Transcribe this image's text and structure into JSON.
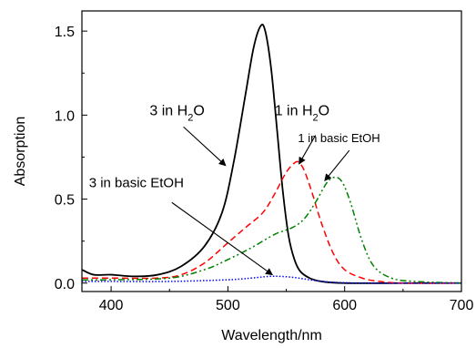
{
  "chart_data": {
    "type": "line",
    "xlabel": "Wavelength/nm",
    "ylabel": "Absorption",
    "xlim": [
      375,
      700
    ],
    "ylim": [
      -0.05,
      1.62
    ],
    "x_ticks": [
      400,
      500,
      600,
      700
    ],
    "x_tick_labels": [
      "400",
      "500",
      "600",
      "700"
    ],
    "y_ticks": [
      0.0,
      0.5,
      1.0,
      1.5
    ],
    "y_tick_labels": [
      "0.0",
      "0.5",
      "1.0",
      "1.5"
    ],
    "grid": false,
    "series": [
      {
        "name": "3 in H2O",
        "color": "#000000",
        "dash": "solid",
        "x": [
          375,
          385,
          400,
          420,
          440,
          460,
          480,
          495,
          505,
          515,
          522,
          528,
          532,
          537,
          542,
          547,
          552,
          557,
          562,
          570,
          580,
          600,
          650,
          700
        ],
        "y": [
          0.08,
          0.05,
          0.05,
          0.04,
          0.05,
          0.1,
          0.22,
          0.42,
          0.72,
          1.12,
          1.4,
          1.53,
          1.5,
          1.28,
          0.92,
          0.55,
          0.28,
          0.14,
          0.07,
          0.03,
          0.01,
          0.0,
          0.0,
          0.0
        ]
      },
      {
        "name": "1 in H2O",
        "color": "#ff0000",
        "dash": "dashed",
        "x": [
          375,
          400,
          440,
          460,
          480,
          500,
          515,
          530,
          540,
          550,
          558,
          562,
          566,
          572,
          580,
          590,
          600,
          615,
          630,
          650,
          700
        ],
        "y": [
          0.03,
          0.03,
          0.03,
          0.05,
          0.12,
          0.24,
          0.33,
          0.42,
          0.53,
          0.66,
          0.72,
          0.71,
          0.66,
          0.54,
          0.36,
          0.18,
          0.08,
          0.03,
          0.01,
          0.0,
          0.0
        ]
      },
      {
        "name": "1 in basic EtOH",
        "color": "#008000",
        "dash": "dashdotdot",
        "x": [
          375,
          400,
          450,
          480,
          500,
          520,
          540,
          555,
          565,
          575,
          585,
          592,
          598,
          605,
          615,
          625,
          640,
          660,
          700
        ],
        "y": [
          0.02,
          0.02,
          0.03,
          0.08,
          0.14,
          0.21,
          0.29,
          0.33,
          0.38,
          0.48,
          0.6,
          0.63,
          0.6,
          0.48,
          0.25,
          0.1,
          0.03,
          0.01,
          0.0
        ]
      },
      {
        "name": "3 in basic EtOH",
        "color": "#0000ff",
        "dash": "dotted",
        "x": [
          375,
          400,
          450,
          500,
          520,
          535,
          545,
          555,
          565,
          575,
          590,
          620,
          700
        ],
        "y": [
          0.01,
          0.01,
          0.01,
          0.02,
          0.03,
          0.04,
          0.04,
          0.035,
          0.025,
          0.015,
          0.005,
          0.0,
          0.0
        ]
      }
    ],
    "annotations": [
      {
        "name": "3-in-water",
        "base": "3 in H",
        "sub": "2",
        "tail": "O",
        "text_x": 433,
        "text_y": 1.0,
        "arrow_from": [
          462,
          0.93
        ],
        "arrow_to": [
          498,
          0.7
        ],
        "size": 16
      },
      {
        "name": "1-in-water",
        "base": "1 in H",
        "sub": "2",
        "tail": "O",
        "text_x": 540,
        "text_y": 1.0,
        "arrow_from": [
          575,
          0.88
        ],
        "arrow_to": [
          561,
          0.71
        ],
        "size": 16
      },
      {
        "name": "1-in-basic-etoh",
        "base": "1 in basic EtOH",
        "sub": "",
        "tail": "",
        "text_x": 560,
        "text_y": 0.84,
        "arrow_from": [
          604,
          0.79
        ],
        "arrow_to": [
          583,
          0.61
        ],
        "size": 13
      },
      {
        "name": "3-in-basic-etoh",
        "base": "3 in basic EtOH",
        "sub": "",
        "tail": "",
        "text_x": 381,
        "text_y": 0.57,
        "arrow_from": [
          452,
          0.48
        ],
        "arrow_to": [
          538,
          0.05
        ],
        "size": 15
      }
    ]
  }
}
